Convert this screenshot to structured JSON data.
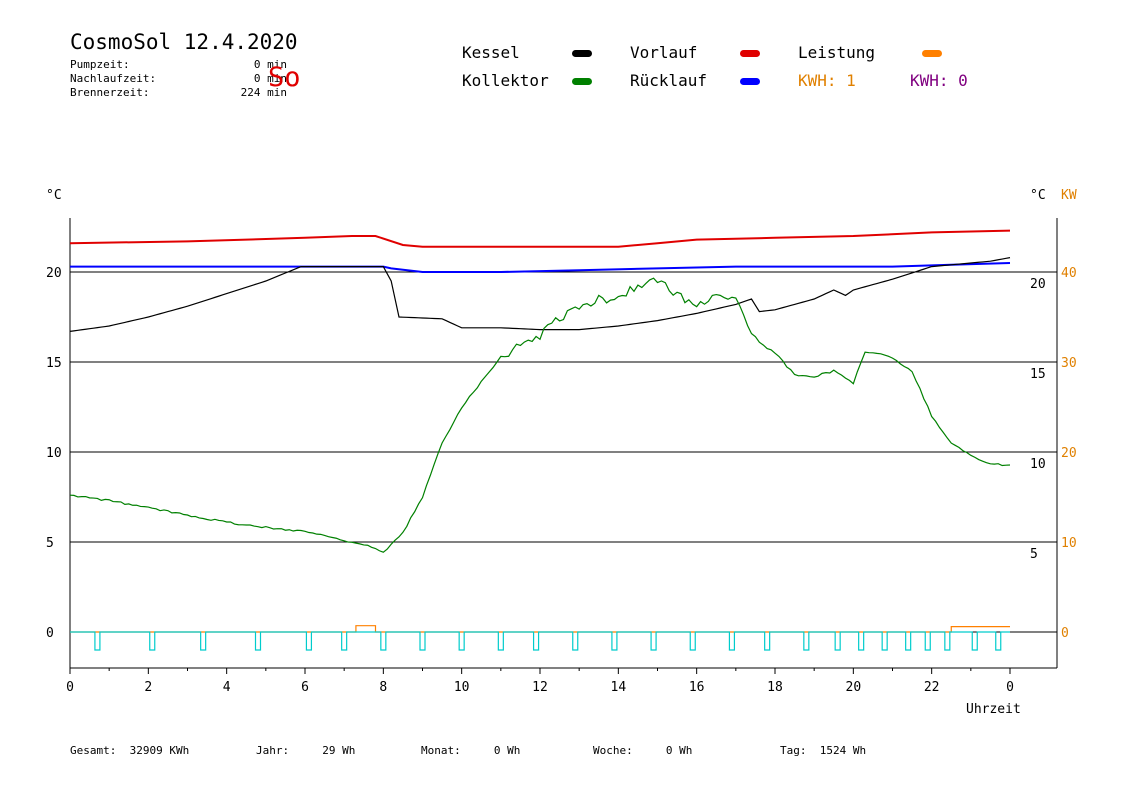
{
  "header": {
    "title": "CosmoSol 12.4.2020",
    "day": "So",
    "info": [
      {
        "label": "Pumpzeit:",
        "value": "0 min"
      },
      {
        "label": "Nachlaufzeit:",
        "value": "0 min"
      },
      {
        "label": "Brennerzeit:",
        "value": "224 min"
      }
    ]
  },
  "legend": {
    "kessel": {
      "label": "Kessel",
      "color": "#000000"
    },
    "vorlauf": {
      "label": "Vorlauf",
      "color": "#e00000"
    },
    "leistung": {
      "label": "Leistung",
      "color": "#ff8000"
    },
    "kollektor": {
      "label": "Kollektor",
      "color": "#008000"
    },
    "ruecklauf": {
      "label": "Rücklauf",
      "color": "#0000ff"
    },
    "kwh1": "KWH: 1",
    "kwh2": "KWH: 0",
    "kwh1_color": "#e08000",
    "kwh2_color": "#800080"
  },
  "axes": {
    "y_left_unit": "°C",
    "y_right_unit": "°C",
    "y_right2_unit": "KW",
    "x_label": "Uhrzeit",
    "x_ticks": [
      "0",
      "2",
      "4",
      "6",
      "8",
      "10",
      "12",
      "14",
      "16",
      "18",
      "20",
      "22",
      "0"
    ],
    "y_left_ticks": [
      "0",
      "5",
      "10",
      "15",
      "20"
    ],
    "y_right_ticks": [
      "5",
      "10",
      "15",
      "20"
    ],
    "y_right2_ticks": [
      "0",
      "10",
      "20",
      "30",
      "40"
    ]
  },
  "footer": [
    {
      "label": "Gesamt:",
      "value": "32909 KWh"
    },
    {
      "label": "Jahr:",
      "value": "29 Wh"
    },
    {
      "label": "Monat:",
      "value": "0 Wh"
    },
    {
      "label": "Woche:",
      "value": "0 Wh"
    },
    {
      "label": "Tag:",
      "value": "1524 Wh"
    }
  ],
  "chart_data": {
    "type": "line",
    "x_unit": "hour",
    "xlim": [
      0,
      24
    ],
    "ylim_left": [
      -2,
      23
    ],
    "ylim_right_kw": [
      -4,
      46
    ],
    "grid": "horizontal",
    "series": [
      {
        "name": "Vorlauf",
        "color": "#e00000",
        "axis": "left",
        "x": [
          0,
          3,
          6,
          7.2,
          7.8,
          8.5,
          9,
          11,
          14,
          15,
          16,
          18,
          20,
          22,
          24
        ],
        "y": [
          21.6,
          21.7,
          21.9,
          22.0,
          22.0,
          21.5,
          21.4,
          21.4,
          21.4,
          21.6,
          21.8,
          21.9,
          22.0,
          22.2,
          22.3
        ]
      },
      {
        "name": "Rücklauf",
        "color": "#0000ff",
        "axis": "left",
        "x": [
          0,
          8,
          8.2,
          9,
          11,
          13,
          15,
          17,
          19,
          21,
          22.5,
          24
        ],
        "y": [
          20.3,
          20.3,
          20.2,
          20.0,
          20.0,
          20.1,
          20.2,
          20.3,
          20.3,
          20.3,
          20.4,
          20.5
        ],
        "shown": "dashed"
      },
      {
        "name": "Kessel",
        "color": "#000000",
        "axis": "left",
        "x": [
          0,
          1,
          2,
          3,
          4,
          5,
          5.9,
          6,
          8,
          8.2,
          8.4,
          9.5,
          10,
          11,
          12,
          13,
          14,
          15,
          16,
          17,
          17.4,
          17.6,
          18,
          19,
          19.5,
          19.8,
          20,
          21,
          22,
          23,
          23.5,
          24
        ],
        "y": [
          16.7,
          17.0,
          17.5,
          18.1,
          18.8,
          19.5,
          20.3,
          20.3,
          20.3,
          19.5,
          17.5,
          17.4,
          16.9,
          16.9,
          16.8,
          16.8,
          17.0,
          17.3,
          17.7,
          18.2,
          18.5,
          17.8,
          17.9,
          18.5,
          19.0,
          18.7,
          19.0,
          19.6,
          20.3,
          20.5,
          20.6,
          20.8
        ]
      },
      {
        "name": "Kollektor",
        "color": "#008000",
        "axis": "left",
        "x": [
          0,
          1,
          2,
          3,
          4,
          5,
          6,
          7,
          7.6,
          8,
          8.5,
          9,
          9.5,
          10,
          11,
          12,
          12.5,
          13,
          13.5,
          14,
          14.5,
          15,
          15.5,
          16,
          16.5,
          17,
          17.5,
          18,
          18.5,
          19,
          19.5,
          20,
          20.3,
          20.6,
          21,
          21.5,
          22,
          22.5,
          23,
          23.5,
          24
        ],
        "y": [
          7.6,
          7.3,
          6.9,
          6.5,
          6.1,
          5.8,
          5.6,
          5.1,
          4.8,
          4.4,
          5.5,
          7.5,
          10.5,
          12.5,
          15.3,
          16.5,
          17.5,
          18.0,
          18.5,
          18.5,
          19.3,
          19.5,
          18.8,
          18.0,
          18.9,
          18.5,
          16.2,
          15.5,
          14.3,
          14.2,
          14.5,
          13.8,
          15.6,
          15.5,
          15.2,
          14.5,
          12.0,
          10.5,
          9.8,
          9.3,
          9.3
        ]
      },
      {
        "name": "Leistung",
        "color": "#ff8000",
        "axis": "right_kw",
        "x": [
          0,
          7.3,
          7.3,
          7.8,
          7.8,
          22.5,
          22.5,
          24
        ],
        "y": [
          0,
          0,
          0.7,
          0.7,
          0,
          0,
          0.6,
          0.6
        ]
      },
      {
        "color": "#00cccc",
        "axis": "left",
        "shape": "pulses",
        "base": 0,
        "pulse_x": [
          0.7,
          2.1,
          3.4,
          4.8,
          6.1,
          7.0,
          8.0,
          9.0,
          10.0,
          11.0,
          11.9,
          12.9,
          13.9,
          14.9,
          15.9,
          16.9,
          17.8,
          18.8,
          19.6,
          20.2,
          20.8,
          21.4,
          21.9,
          22.4,
          23.1,
          23.7
        ],
        "pulse_depth": -1.0
      }
    ]
  }
}
